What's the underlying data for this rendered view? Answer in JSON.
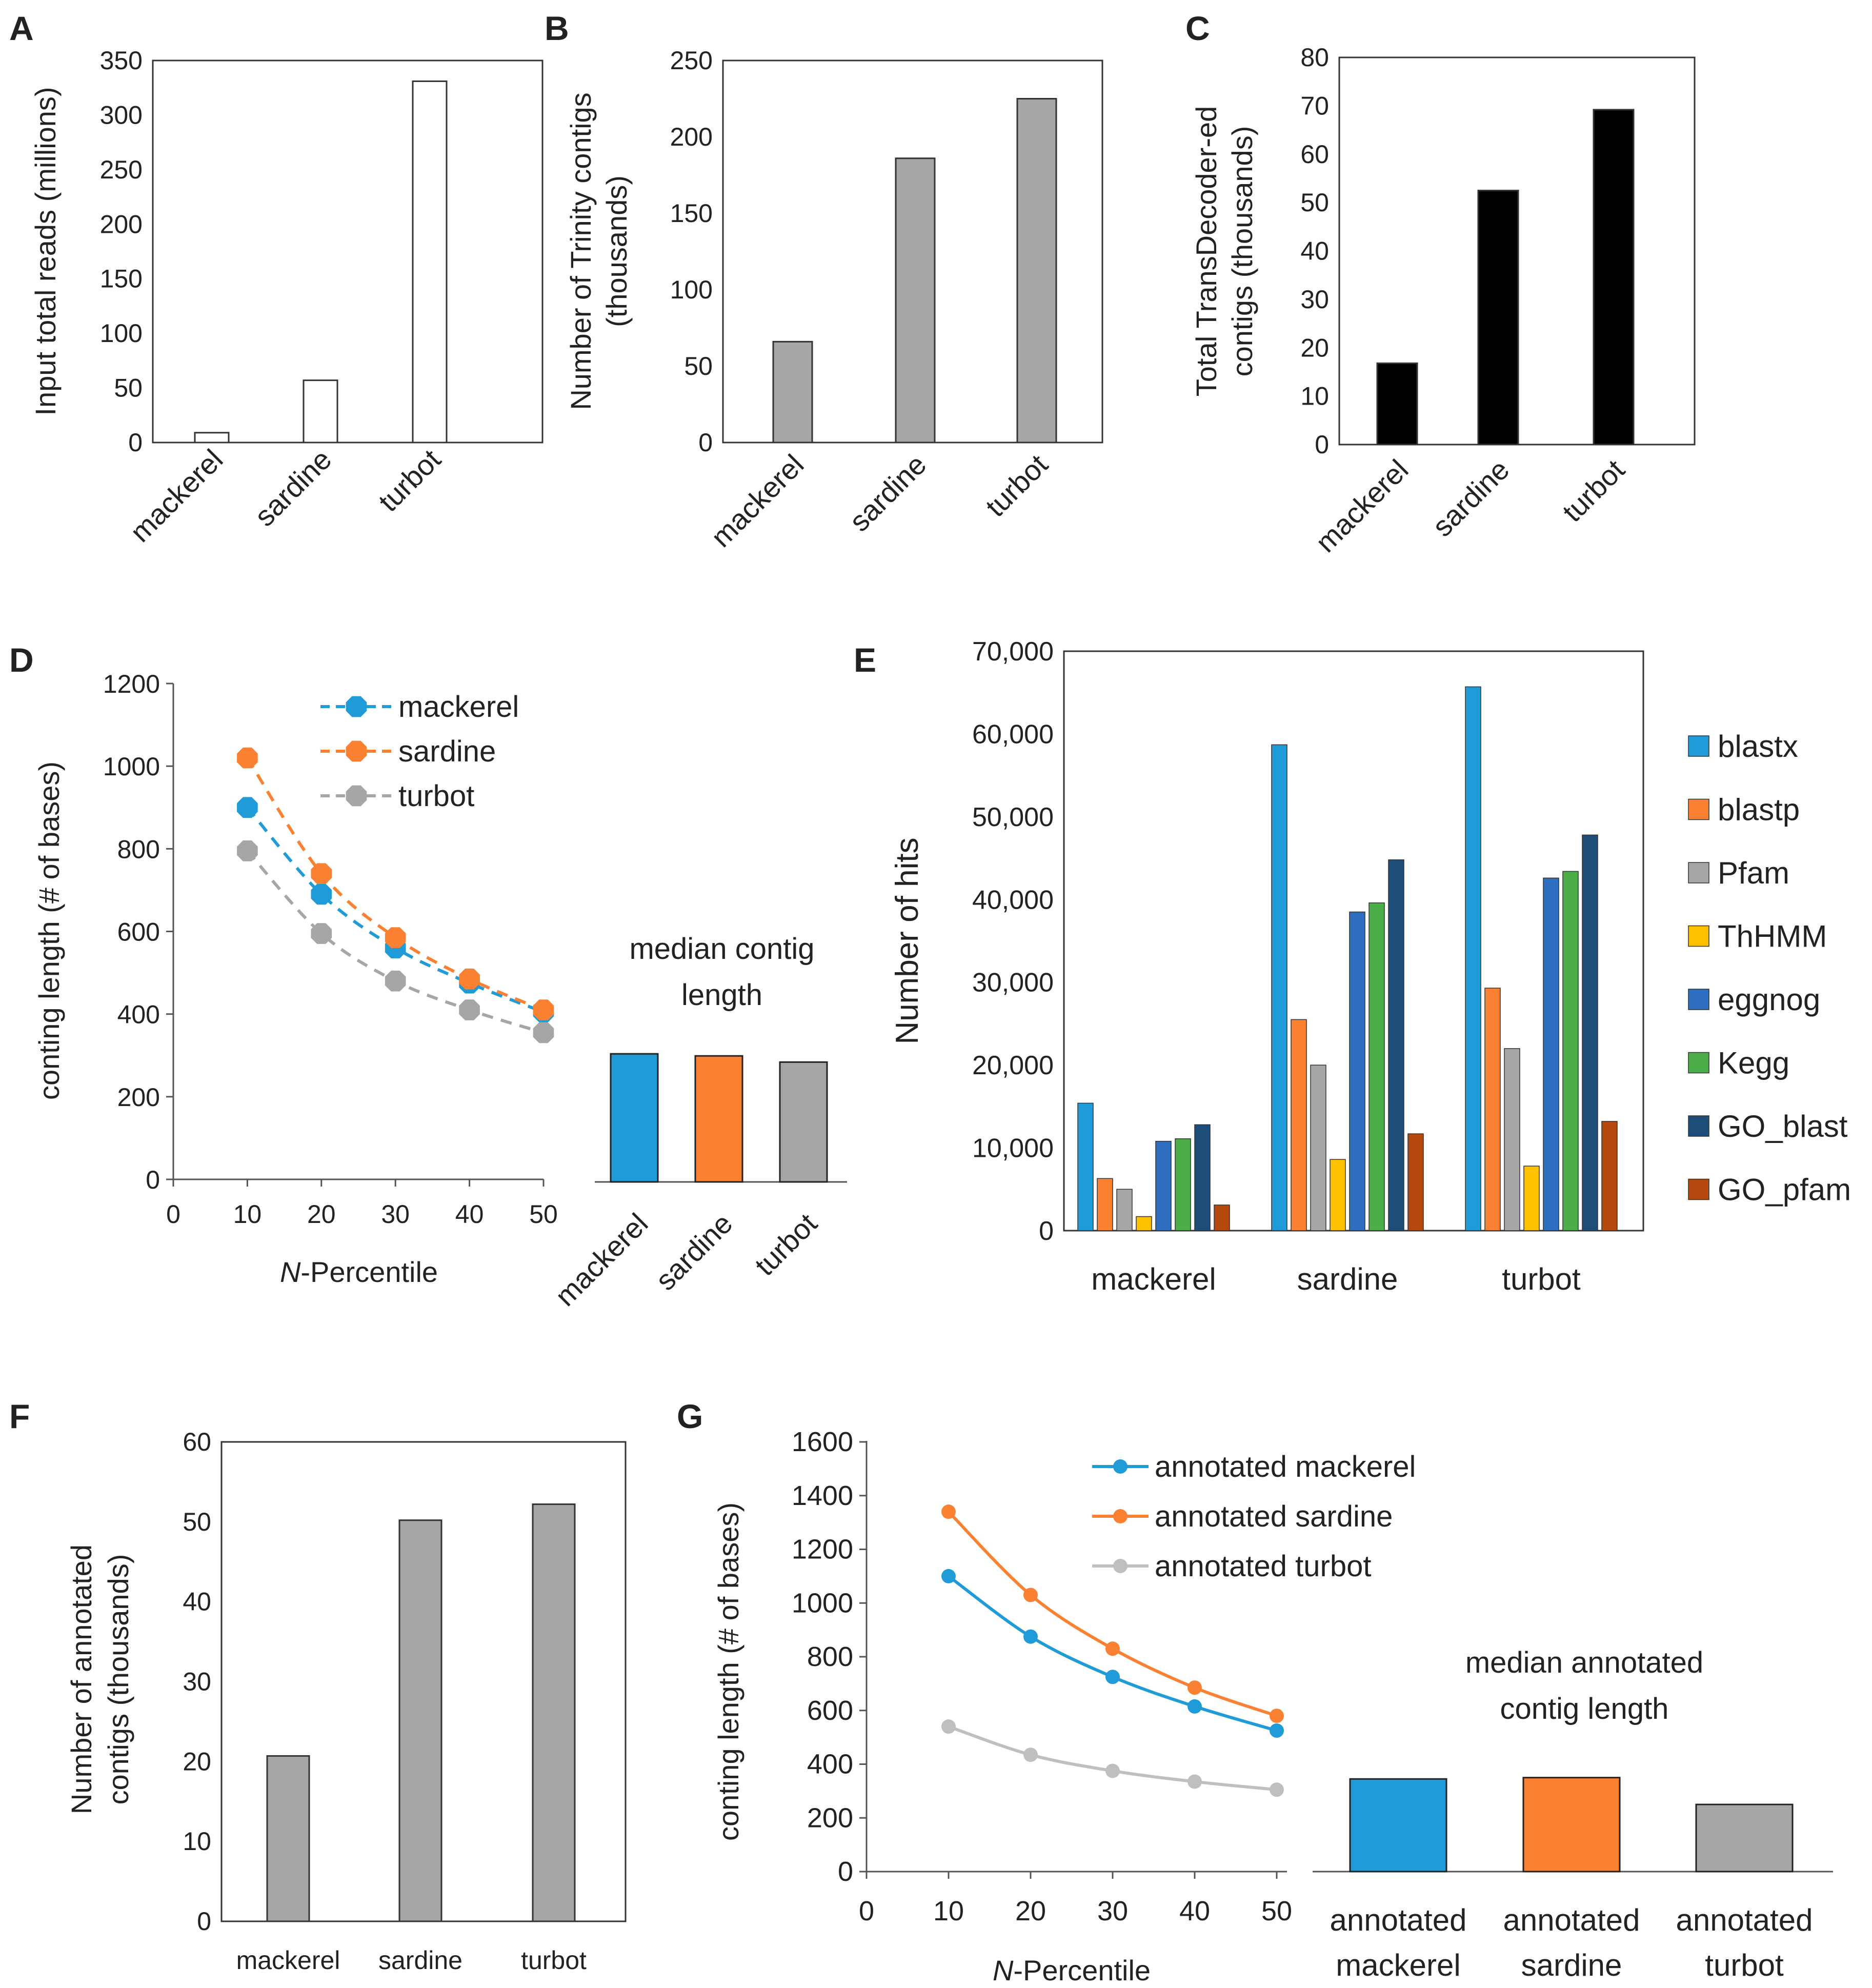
{
  "panels": {
    "A": {
      "letter": "A",
      "chart_data": {
        "type": "bar",
        "categories": [
          "mackerel",
          "sardine",
          "turbot"
        ],
        "values": [
          9,
          57,
          331
        ],
        "ylabel": "Input total reads (millions)",
        "ylim": [
          0,
          350
        ],
        "yticks": [
          0,
          50,
          100,
          150,
          200,
          250,
          300,
          350
        ],
        "bar_color": "#ffffff"
      }
    },
    "B": {
      "letter": "B",
      "chart_data": {
        "type": "bar",
        "categories": [
          "mackerel",
          "sardine",
          "turbot"
        ],
        "values": [
          66,
          186,
          225
        ],
        "ylabel": [
          "Number of Trinity contigs",
          "(thousands)"
        ],
        "ylim": [
          0,
          250
        ],
        "yticks": [
          0,
          50,
          100,
          150,
          200,
          250
        ],
        "bar_color": "#a6a6a6"
      }
    },
    "C": {
      "letter": "C",
      "chart_data": {
        "type": "bar",
        "categories": [
          "mackerel",
          "sardine",
          "turbot"
        ],
        "values": [
          16.8,
          52.5,
          69.2
        ],
        "ylabel": [
          "Total TransDecoder-ed",
          "contigs (thousands)"
        ],
        "ylim": [
          0,
          80
        ],
        "yticks": [
          0,
          10,
          20,
          30,
          40,
          50,
          60,
          70,
          80
        ],
        "bar_color": "#000000"
      }
    },
    "D": {
      "letter": "D",
      "chart_data": {
        "type": "line",
        "x": [
          10,
          20,
          30,
          40,
          50
        ],
        "series": [
          {
            "name": "mackerel",
            "values": [
              900,
              690,
              560,
              475,
              405
            ],
            "color": "#1f9bd7"
          },
          {
            "name": "sardine",
            "values": [
              1020,
              740,
              585,
              485,
              410
            ],
            "color": "#f98131"
          },
          {
            "name": "turbot",
            "values": [
              795,
              595,
              480,
              410,
              355
            ],
            "color": "#a6a6a6"
          }
        ],
        "xlabel_italic": "N",
        "xlabel_rest": "-Percentile",
        "ylabel": "conting length (# of bases)",
        "xlim": [
          0,
          50
        ],
        "ylim": [
          0,
          1200
        ],
        "xticks": [
          0,
          10,
          20,
          30,
          40,
          50
        ],
        "yticks": [
          0,
          200,
          400,
          600,
          800,
          1000,
          1200
        ],
        "legend_position": "top-right"
      },
      "median_chart": {
        "type": "bar",
        "title": [
          "median contig",
          "length"
        ],
        "categories": [
          "mackerel",
          "sardine",
          "turbot"
        ],
        "values": [
          310,
          305,
          290
        ],
        "colors": [
          "#1f9bd7",
          "#f98131",
          "#a6a6a6"
        ],
        "ylim": [
          0,
          1200
        ]
      }
    },
    "E": {
      "letter": "E",
      "chart_data": {
        "type": "bar",
        "categories": [
          "mackerel",
          "sardine",
          "turbot"
        ],
        "series": [
          {
            "name": "blastx",
            "values": [
              15400,
              58700,
              65700
            ],
            "color": "#1f9bd7"
          },
          {
            "name": "blastp",
            "values": [
              6300,
              25500,
              29300
            ],
            "color": "#f98131"
          },
          {
            "name": "Pfam",
            "values": [
              5000,
              20000,
              22000
            ],
            "color": "#a6a6a6"
          },
          {
            "name": "ThHMM",
            "values": [
              1700,
              8600,
              7800
            ],
            "color": "#ffc000"
          },
          {
            "name": "eggnog",
            "values": [
              10800,
              38500,
              42600
            ],
            "color": "#2e6ec0"
          },
          {
            "name": "Kegg",
            "values": [
              11100,
              39600,
              43400
            ],
            "color": "#4cae48"
          },
          {
            "name": "GO_blast",
            "values": [
              12800,
              44800,
              47800
            ],
            "color": "#1d4e7a"
          },
          {
            "name": "GO_pfam",
            "values": [
              3100,
              11700,
              13200
            ],
            "color": "#b5490d"
          }
        ],
        "ylabel": "Number of hits",
        "ylim": [
          0,
          70000
        ],
        "yticks": [
          "0",
          "10,000",
          "20,000",
          "30,000",
          "40,000",
          "50,000",
          "60,000",
          "70,000"
        ],
        "legend_position": "right"
      }
    },
    "F": {
      "letter": "F",
      "chart_data": {
        "type": "bar",
        "categories": [
          "mackerel",
          "sardine",
          "turbot"
        ],
        "values": [
          20.7,
          50.2,
          52.2
        ],
        "ylabel": [
          "Number of annotated",
          "contigs (thousands)"
        ],
        "ylim": [
          0,
          60
        ],
        "yticks": [
          0,
          10,
          20,
          30,
          40,
          50,
          60
        ],
        "bar_color": "#a6a6a6"
      }
    },
    "G": {
      "letter": "G",
      "chart_data": {
        "type": "line",
        "x": [
          10,
          20,
          30,
          40,
          50
        ],
        "series": [
          {
            "name": "annotated mackerel",
            "values": [
              1100,
              875,
              725,
              615,
              525
            ],
            "color": "#1f9bd7"
          },
          {
            "name": "annotated sardine",
            "values": [
              1340,
              1030,
              830,
              685,
              580
            ],
            "color": "#f98131"
          },
          {
            "name": "annotated turbot",
            "values": [
              540,
              435,
              375,
              335,
              305
            ],
            "color": "#bfbfbf"
          }
        ],
        "xlabel_italic": "N",
        "xlabel_rest": "-Percentile",
        "ylabel": "conting length (# of bases)",
        "xlim": [
          0,
          50
        ],
        "ylim": [
          0,
          1600
        ],
        "xticks": [
          0,
          10,
          20,
          30,
          40,
          50
        ],
        "yticks": [
          0,
          200,
          400,
          600,
          800,
          1000,
          1200,
          1400,
          1600
        ],
        "legend_position": "top-right"
      },
      "median_chart": {
        "type": "bar",
        "title": [
          "median annotated",
          "contig length"
        ],
        "categories": [
          [
            "annotated",
            "mackerel"
          ],
          [
            "annotated",
            "sardine"
          ],
          [
            "annotated",
            "turbot"
          ]
        ],
        "values": [
          345,
          350,
          250
        ],
        "colors": [
          "#1f9bd7",
          "#f98131",
          "#a6a6a6"
        ],
        "ylim": [
          0,
          1600
        ]
      }
    }
  }
}
